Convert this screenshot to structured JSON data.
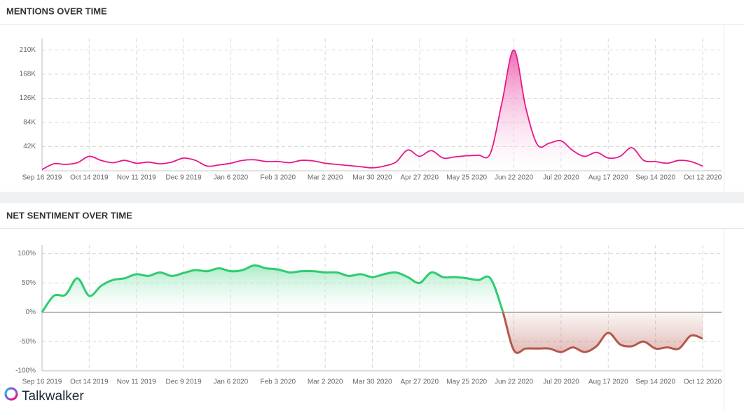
{
  "chart_data": [
    {
      "type": "area",
      "title": "MENTIONS OVER TIME",
      "color": "#e5198a",
      "grid": true,
      "categories": [
        "Sep 16 2019",
        null,
        null,
        null,
        "Oct 14 2019",
        null,
        null,
        null,
        "Nov 11 2019",
        null,
        null,
        null,
        "Dec 9 2019",
        null,
        null,
        null,
        "Jan 6 2020",
        null,
        null,
        null,
        "Feb 3 2020",
        null,
        null,
        null,
        "Mar 2 2020",
        null,
        null,
        null,
        "Mar 30 2020",
        null,
        null,
        null,
        "Apr 27 2020",
        null,
        null,
        null,
        "May 25 2020",
        null,
        null,
        null,
        "Jun 22 2020",
        null,
        null,
        null,
        "Jul 20 2020",
        null,
        null,
        null,
        "Aug 17 2020",
        null,
        null,
        null,
        "Sep 14 2020",
        null,
        null,
        null,
        "Oct 12 2020"
      ],
      "values": [
        2000,
        12000,
        11000,
        14000,
        25000,
        18000,
        14000,
        18000,
        13000,
        15000,
        12000,
        15000,
        22000,
        18000,
        8000,
        10000,
        13000,
        18000,
        19000,
        16000,
        16000,
        14000,
        18000,
        17000,
        13000,
        11000,
        9000,
        7000,
        5000,
        8000,
        15000,
        36000,
        25000,
        35000,
        22000,
        24000,
        26000,
        27000,
        30000,
        120000,
        210000,
        110000,
        45000,
        48000,
        52000,
        35000,
        25000,
        32000,
        22000,
        25000,
        40000,
        18000,
        16000,
        13000,
        18000,
        16000,
        8000
      ],
      "ylim": [
        0,
        230000
      ],
      "yticks": [
        {
          "value": 42000,
          "label": "42K"
        },
        {
          "value": 84000,
          "label": "84K"
        },
        {
          "value": 126000,
          "label": "126K"
        },
        {
          "value": 168000,
          "label": "168K"
        },
        {
          "value": 210000,
          "label": "210K"
        }
      ]
    },
    {
      "type": "area",
      "title": "NET SENTIMENT OVER TIME",
      "color": "#2ecc71",
      "negative_color": "#b4574c",
      "grid": true,
      "categories": [
        "Sep 16 2019",
        null,
        null,
        null,
        "Oct 14 2019",
        null,
        null,
        null,
        "Nov 11 2019",
        null,
        null,
        null,
        "Dec 9 2019",
        null,
        null,
        null,
        "Jan 6 2020",
        null,
        null,
        null,
        "Feb 3 2020",
        null,
        null,
        null,
        "Mar 2 2020",
        null,
        null,
        null,
        "Mar 30 2020",
        null,
        null,
        null,
        "Apr 27 2020",
        null,
        null,
        null,
        "May 25 2020",
        null,
        null,
        null,
        "Jun 22 2020",
        null,
        null,
        null,
        "Jul 20 2020",
        null,
        null,
        null,
        "Aug 17 2020",
        null,
        null,
        null,
        "Sep 14 2020",
        null,
        null,
        null,
        "Oct 12 2020"
      ],
      "values": [
        0,
        28,
        30,
        58,
        28,
        45,
        55,
        58,
        65,
        62,
        68,
        62,
        67,
        72,
        70,
        75,
        70,
        72,
        80,
        75,
        73,
        68,
        70,
        70,
        68,
        68,
        62,
        65,
        60,
        65,
        68,
        60,
        50,
        68,
        60,
        60,
        58,
        55,
        58,
        5,
        -65,
        -62,
        -62,
        -62,
        -68,
        -60,
        -68,
        -58,
        -35,
        -55,
        -58,
        -50,
        -62,
        -60,
        -62,
        -40,
        -45
      ],
      "ylim": [
        -100,
        115
      ],
      "yticks": [
        {
          "value": -100,
          "label": "-100%"
        },
        {
          "value": -50,
          "label": "-50%"
        },
        {
          "value": 0,
          "label": "0%"
        },
        {
          "value": 50,
          "label": "50%"
        },
        {
          "value": 100,
          "label": "100%"
        }
      ]
    }
  ],
  "footer": {
    "brand": "Talkwalker"
  }
}
